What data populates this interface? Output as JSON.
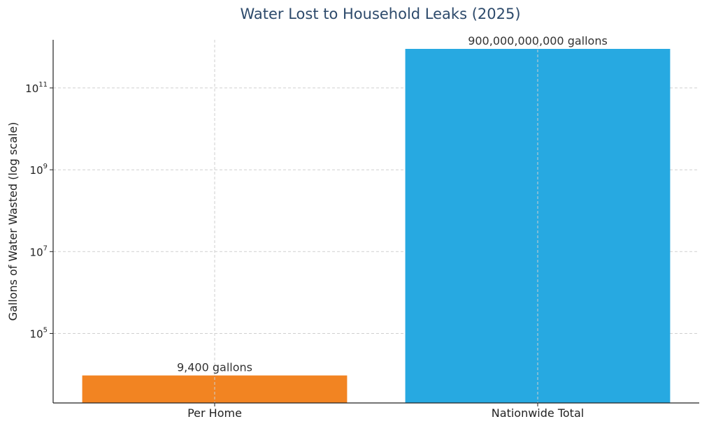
{
  "chart_data": {
    "type": "bar",
    "title": "Water Lost to Household Leaks (2025)",
    "ylabel": "Gallons of Water Wasted (log scale)",
    "xlabel": "",
    "yscale": "log",
    "ylim": [
      2000,
      1500000000000
    ],
    "yticks": [
      {
        "base": "10",
        "exp": "5",
        "value": 100000
      },
      {
        "base": "10",
        "exp": "7",
        "value": 10000000
      },
      {
        "base": "10",
        "exp": "9",
        "value": 1000000000
      },
      {
        "base": "10",
        "exp": "11",
        "value": 100000000000
      }
    ],
    "categories": [
      "Per Home",
      "Nationwide Total"
    ],
    "values": [
      9400,
      900000000000
    ],
    "data_labels": [
      "9,400 gallons",
      "900,000,000,000 gallons"
    ],
    "colors": [
      "#f28422",
      "#27a9e1"
    ],
    "grid": true
  }
}
